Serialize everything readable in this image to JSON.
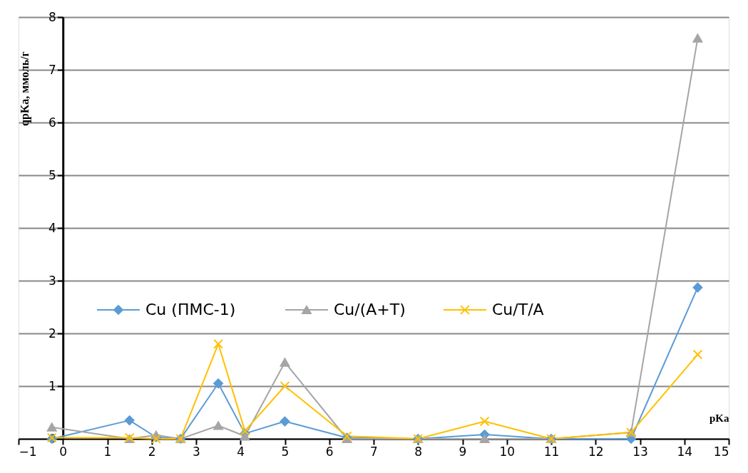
{
  "chart_data": {
    "type": "line",
    "xlabel": "pKa",
    "ylabel": "qpKa, ммоль/г",
    "x": [
      -0.25,
      1.5,
      2.1,
      2.65,
      3.5,
      4.1,
      5,
      6.4,
      8,
      9.5,
      11,
      12.8,
      14.3
    ],
    "series": [
      {
        "name": "Cu  (ПМС-1)",
        "color": "#5b9bd5",
        "marker": "diamond",
        "values": [
          0,
          0.35,
          0.03,
          0,
          1.05,
          0.1,
          0.33,
          0.02,
          0,
          0.08,
          0,
          0,
          2.87
        ]
      },
      {
        "name": "Cu/(A+T)",
        "color": "#a5a5a5",
        "marker": "triangle",
        "values": [
          0.22,
          0,
          0.07,
          0,
          0.25,
          0.05,
          1.45,
          0,
          0,
          0,
          0,
          0.12,
          7.6
        ]
      },
      {
        "name": "Cu/T/A",
        "color": "#ffc000",
        "marker": "cross",
        "values": [
          0.02,
          0.02,
          0,
          0,
          1.8,
          0.15,
          1.0,
          0.05,
          0,
          0.33,
          0,
          0.12,
          1.6
        ]
      }
    ],
    "xlim": [
      -1,
      15
    ],
    "xticks": [
      -1,
      0,
      1,
      2,
      3,
      4,
      5,
      6,
      7,
      8,
      9,
      10,
      11,
      12,
      13,
      14,
      15
    ],
    "ylim": [
      0,
      8
    ],
    "yticks": [
      0,
      1,
      2,
      3,
      4,
      5,
      6,
      7,
      8
    ],
    "grid": "y",
    "legend": "left",
    "line_style": "solid"
  }
}
